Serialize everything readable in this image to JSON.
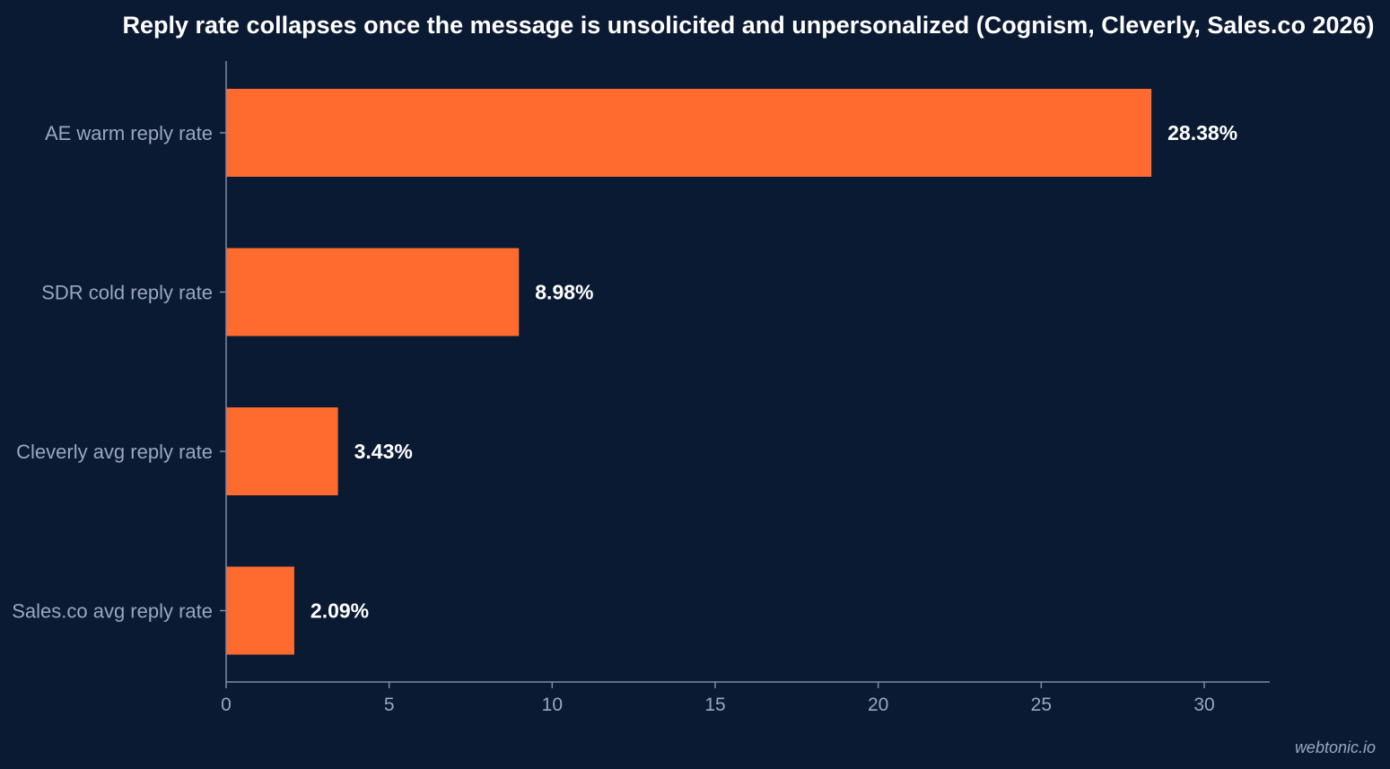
{
  "chart_data": {
    "type": "bar",
    "orientation": "horizontal",
    "title": "Reply rate collapses once the message is unsolicited and unpersonalized (Cognism, Cleverly, Sales.co 2026)",
    "categories": [
      "AE warm reply rate",
      "SDR cold reply rate",
      "Cleverly avg reply rate",
      "Sales.co avg reply rate"
    ],
    "values": [
      28.38,
      8.98,
      3.43,
      2.09
    ],
    "value_labels": [
      "28.38%",
      "8.98%",
      "3.43%",
      "2.09%"
    ],
    "xlim": [
      0,
      32
    ],
    "xticks": [
      0,
      5,
      10,
      15,
      20,
      25,
      30
    ],
    "xtick_labels": [
      "0",
      "5",
      "10",
      "15",
      "20",
      "25",
      "30"
    ],
    "grid": false,
    "bar_color": "#ff6b2f",
    "background_color": "#0b1a33",
    "axis_color": "#7d8aa3"
  },
  "watermark": "webtonic.io"
}
